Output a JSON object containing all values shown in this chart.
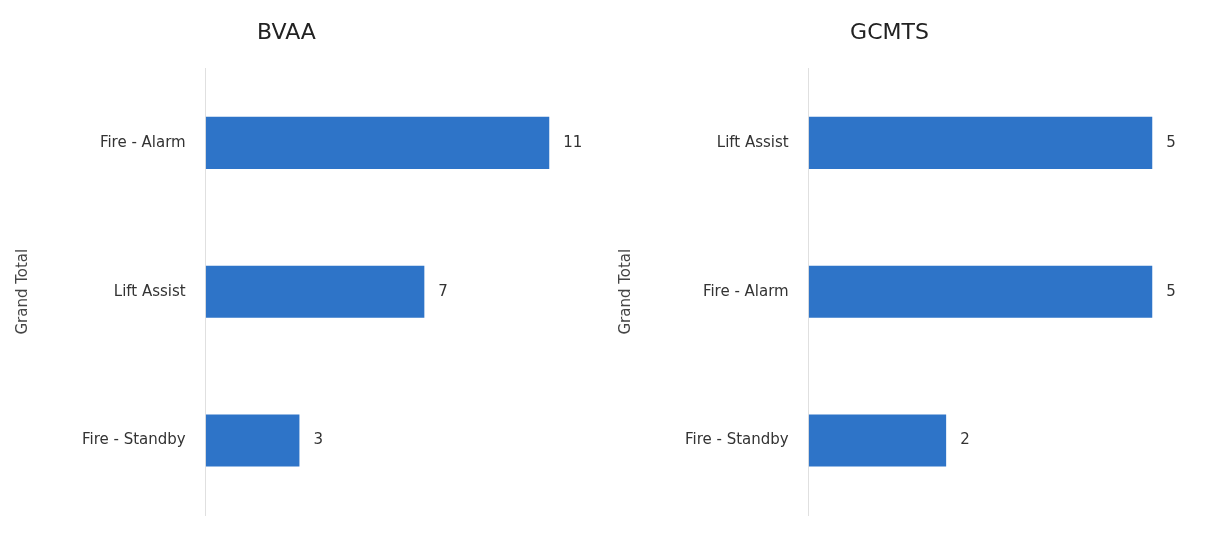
{
  "chart_data": [
    {
      "type": "bar",
      "title": "BVAA",
      "orientation": "horizontal",
      "ylabel": "Grand Total",
      "categories": [
        "Fire - Alarm",
        "Lift Assist",
        "Fire - Standby"
      ],
      "values": [
        11,
        7,
        3
      ],
      "color": "#2e74c8",
      "data_labels": true,
      "grid": false,
      "legend": false,
      "tick_labels": "y"
    },
    {
      "type": "bar",
      "title": "GCMTS",
      "orientation": "horizontal",
      "ylabel": "Grand Total",
      "categories": [
        "Lift Assist",
        "Fire - Alarm",
        "Fire - Standby"
      ],
      "values": [
        5,
        5,
        2
      ],
      "color": "#2e74c8",
      "data_labels": true,
      "grid": false,
      "legend": false,
      "tick_labels": "y"
    }
  ]
}
